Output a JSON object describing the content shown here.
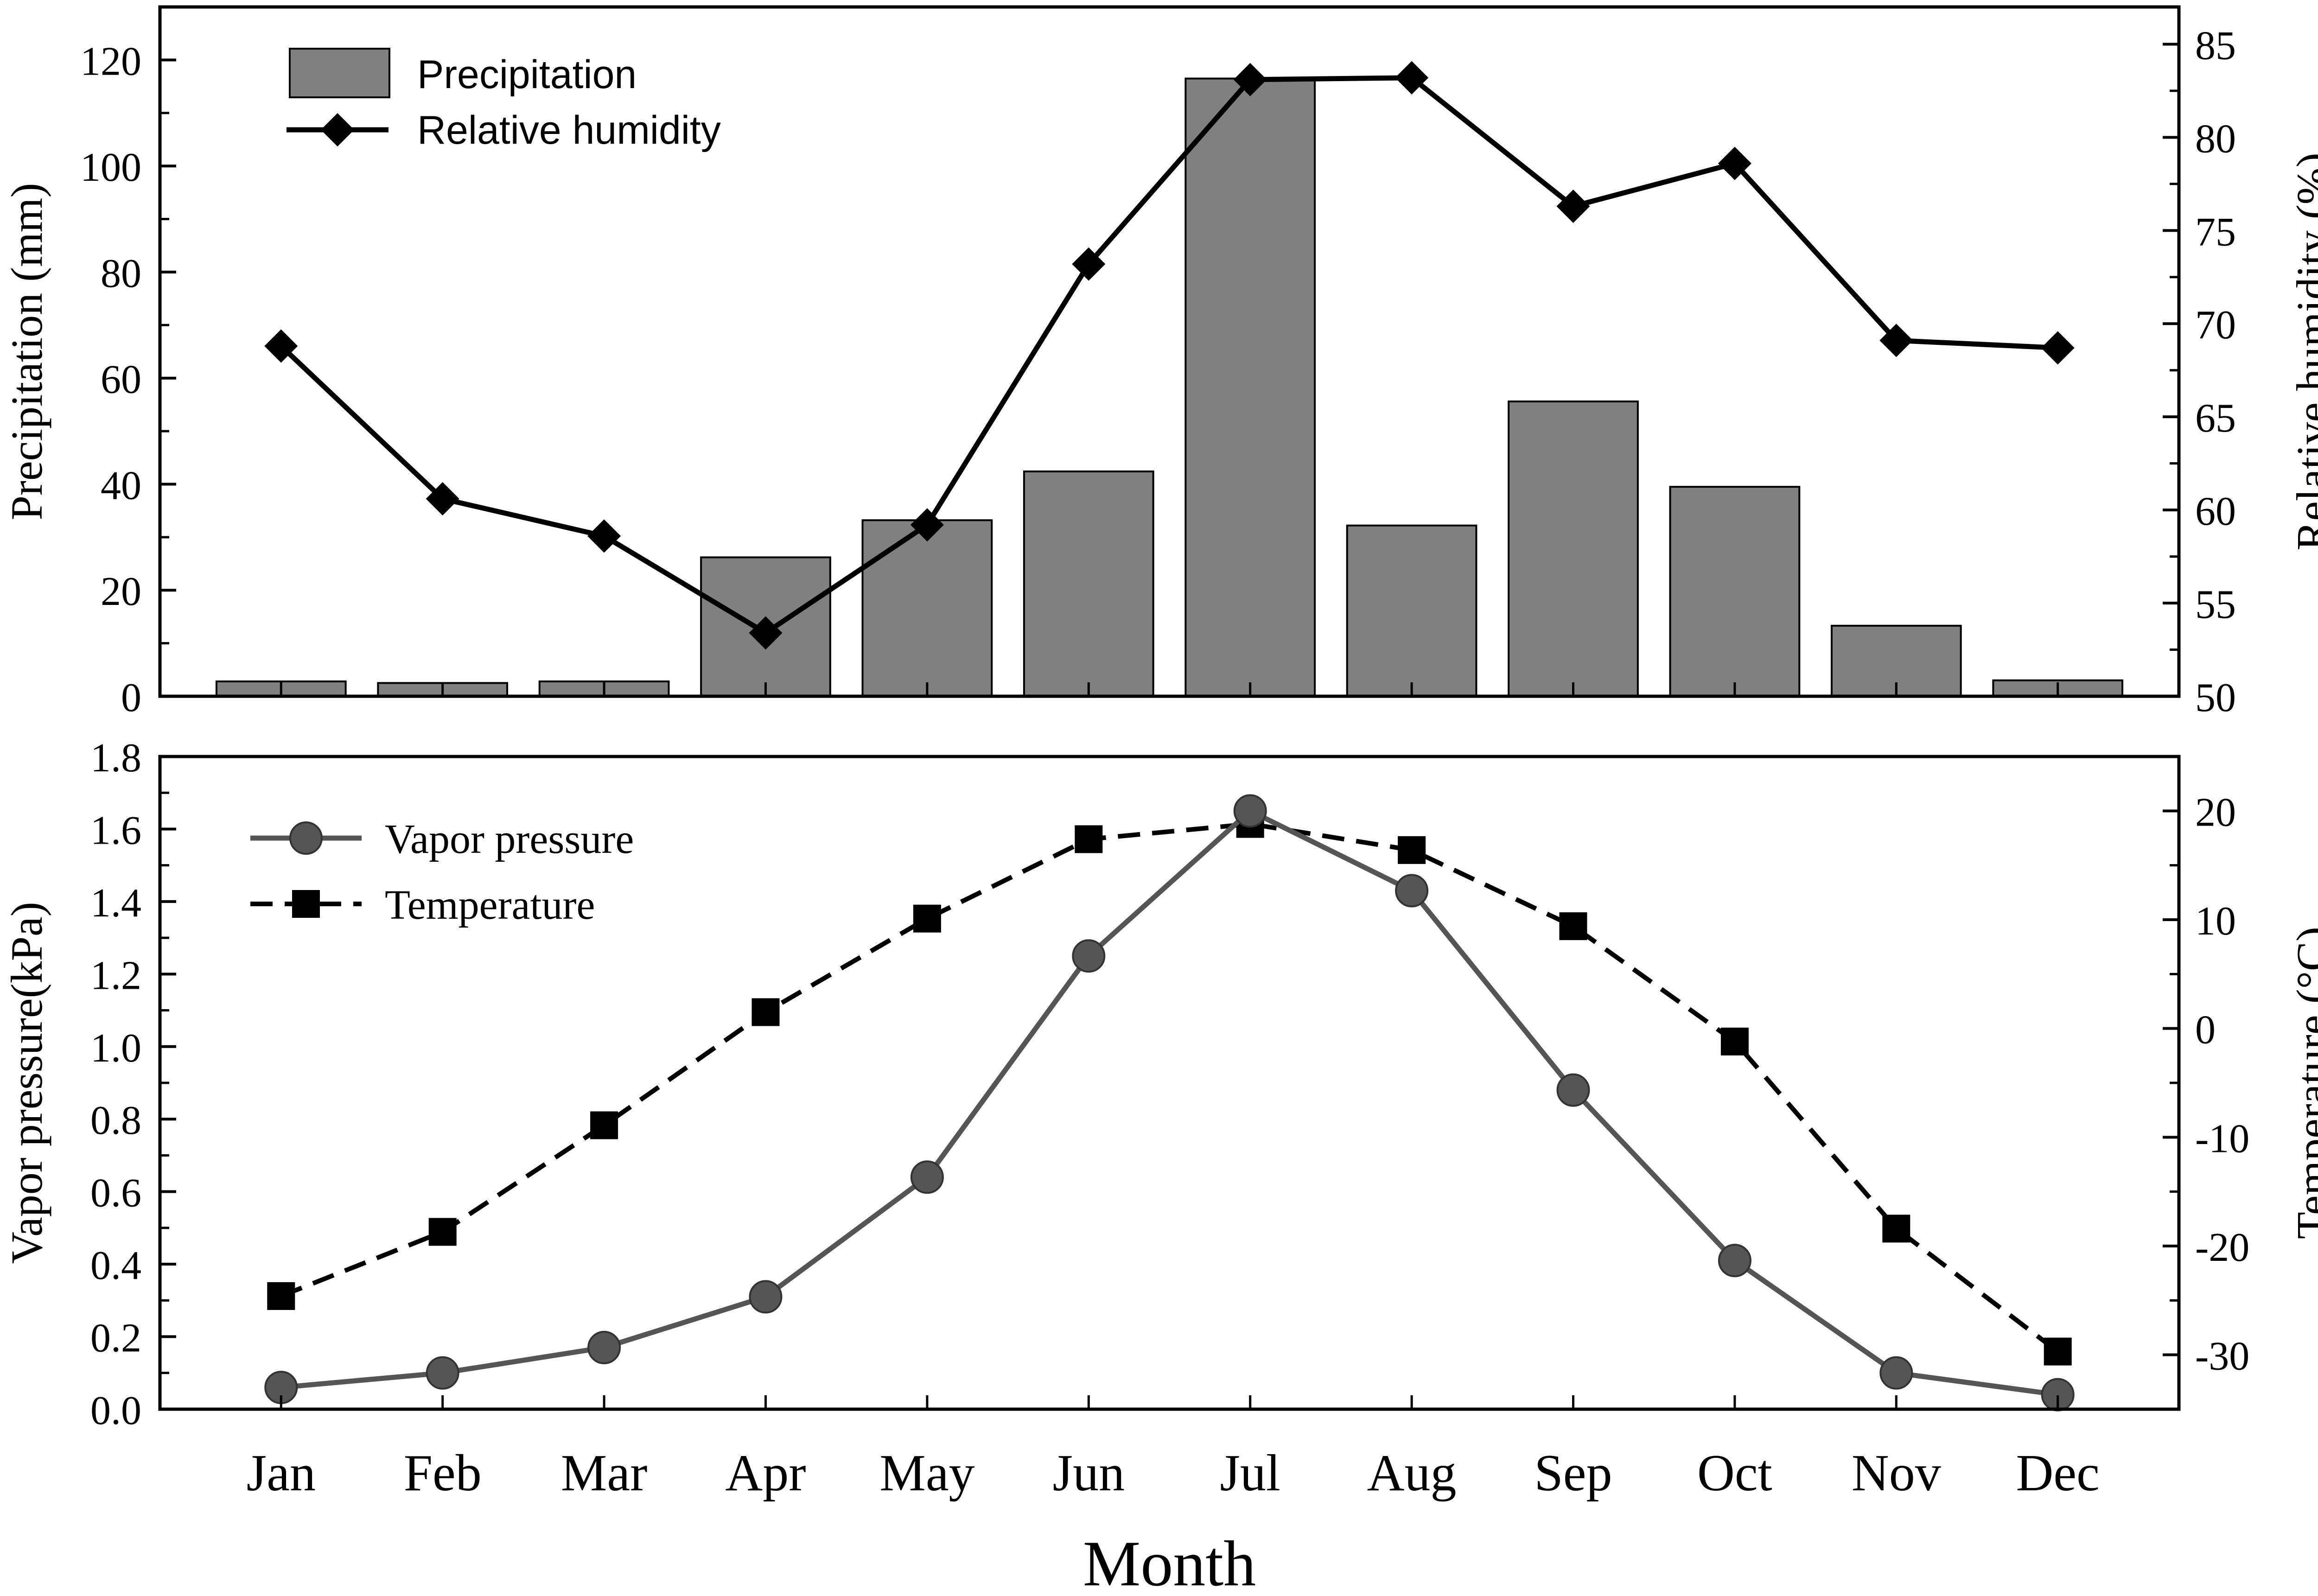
{
  "chart_data": [
    {
      "type": "bar+line",
      "title": "",
      "xlabel": "",
      "categories": [
        "Jan",
        "Feb",
        "Mar",
        "Apr",
        "May",
        "Jun",
        "Jul",
        "Aug",
        "Sep",
        "Oct",
        "Nov",
        "Dec"
      ],
      "left_axis": {
        "label": "Precipitation (mm)",
        "ylim": [
          0,
          130
        ],
        "ticks": [
          0,
          20,
          40,
          60,
          80,
          100,
          120
        ],
        "tick_labels": [
          "0",
          "20",
          "40",
          "60",
          "80",
          "100",
          "120"
        ]
      },
      "right_axis": {
        "label": "Relative humidity (%)",
        "ylim": [
          50,
          87
        ],
        "ticks": [
          50,
          55,
          60,
          65,
          70,
          75,
          80,
          85
        ],
        "tick_labels": [
          "50",
          "55",
          "60",
          "65",
          "70",
          "75",
          "80",
          "85"
        ]
      },
      "series": [
        {
          "name": "Precipitation",
          "type": "bar",
          "axis": "left",
          "color": "#808080",
          "values": [
            2.8,
            2.5,
            2.8,
            26.2,
            33.2,
            42.4,
            116.5,
            32.2,
            55.6,
            39.5,
            13.3,
            3.0
          ]
        },
        {
          "name": "Relative humidity",
          "type": "line",
          "axis": "right",
          "color": "#000000",
          "marker": "diamond",
          "values": [
            68.8,
            60.6,
            58.6,
            53.4,
            59.2,
            73.2,
            83.1,
            83.2,
            76.3,
            78.6,
            69.1,
            68.7
          ]
        }
      ],
      "legend": "top-left"
    },
    {
      "type": "line",
      "title": "",
      "xlabel": "Month",
      "categories": [
        "Jan",
        "Feb",
        "Mar",
        "Apr",
        "May",
        "Jun",
        "Jul",
        "Aug",
        "Sep",
        "Oct",
        "Nov",
        "Dec"
      ],
      "left_axis": {
        "label": "Vapor pressure(kPa)",
        "ylim": [
          0,
          1.8
        ],
        "ticks": [
          0,
          0.2,
          0.4,
          0.6,
          0.8,
          1.0,
          1.2,
          1.4,
          1.6,
          1.8
        ],
        "tick_labels": [
          "0.0",
          "0.2",
          "0.4",
          "0.6",
          "0.8",
          "1.0",
          "1.2",
          "1.4",
          "1.6",
          "1.8"
        ]
      },
      "right_axis": {
        "label": "Temperature (°C)",
        "ylim": [
          -35,
          25
        ],
        "ticks": [
          -30,
          -20,
          -10,
          0,
          10,
          20
        ],
        "tick_labels": [
          "-30",
          "-20",
          "-10",
          "0",
          "10",
          "20"
        ]
      },
      "series": [
        {
          "name": "Vapor pressure",
          "type": "line",
          "axis": "left",
          "color": "#555555",
          "marker": "circle",
          "dash": "solid",
          "values": [
            0.06,
            0.1,
            0.17,
            0.31,
            0.64,
            1.25,
            1.65,
            1.43,
            0.88,
            0.41,
            0.1,
            0.04
          ]
        },
        {
          "name": "Temperature",
          "type": "line",
          "axis": "right",
          "color": "#000000",
          "marker": "square",
          "dash": "dashed",
          "values": [
            -24.6,
            -18.7,
            -8.9,
            1.5,
            10.1,
            17.4,
            18.8,
            16.4,
            9.4,
            -1.2,
            -18.4,
            -29.7
          ]
        }
      ],
      "legend": "top-left"
    }
  ]
}
